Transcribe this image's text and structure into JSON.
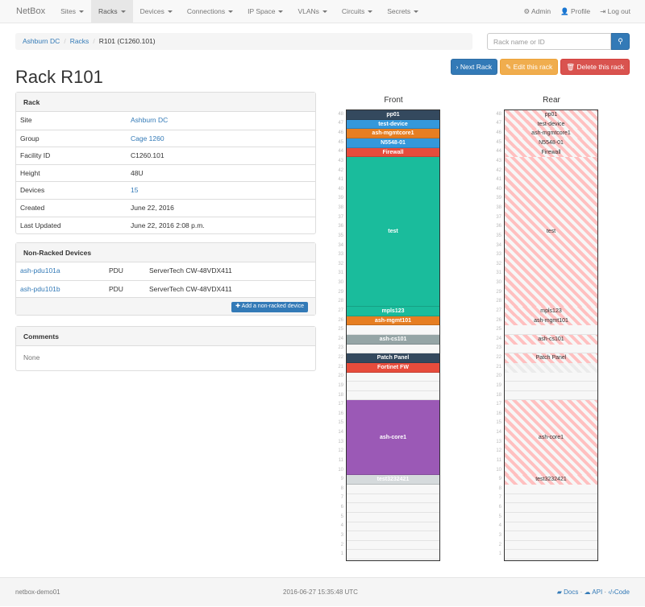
{
  "navbar": {
    "brand": "NetBox",
    "items": [
      "Sites",
      "Racks",
      "Devices",
      "Connections",
      "IP Space",
      "VLANs",
      "Circuits",
      "Secrets"
    ],
    "active": "Racks",
    "right": [
      {
        "icon": "gear-icon",
        "label": "Admin"
      },
      {
        "icon": "user-icon",
        "label": "Profile"
      },
      {
        "icon": "logout-icon",
        "label": "Log out"
      }
    ]
  },
  "breadcrumb": [
    "Ashburn DC",
    "Racks",
    "R101 (C1260.101)"
  ],
  "search": {
    "placeholder": "Rack name or ID",
    "icon": "search-icon"
  },
  "buttons": {
    "next": "Next Rack",
    "edit": "Edit this rack",
    "delete": "Delete this rack"
  },
  "title": "Rack R101",
  "rack_panel": {
    "heading": "Rack",
    "rows": [
      {
        "k": "Site",
        "v": "Ashburn DC",
        "link": true
      },
      {
        "k": "Group",
        "v": "Cage 1260",
        "link": true
      },
      {
        "k": "Facility ID",
        "v": "C1260.101"
      },
      {
        "k": "Height",
        "v": "48U"
      },
      {
        "k": "Devices",
        "v": "15",
        "link": true
      },
      {
        "k": "Created",
        "v": "June 22, 2016"
      },
      {
        "k": "Last Updated",
        "v": "June 22, 2016 2:08 p.m."
      }
    ]
  },
  "nonracked": {
    "heading": "Non-Racked Devices",
    "rows": [
      {
        "name": "ash-pdu101a",
        "role": "PDU",
        "type": "ServerTech CW-48VDX411"
      },
      {
        "name": "ash-pdu101b",
        "role": "PDU",
        "type": "ServerTech CW-48VDX411"
      }
    ],
    "add": "Add a non-racked device"
  },
  "comments": {
    "heading": "Comments",
    "body": "None"
  },
  "rack": {
    "front_title": "Front",
    "rear_title": "Rear",
    "units": 48,
    "devices": [
      {
        "name": "pp01",
        "top": 48,
        "height": 1,
        "color": "#34495e",
        "full": true
      },
      {
        "name": "test-device",
        "top": 47,
        "height": 1,
        "color": "#3498db",
        "full": true
      },
      {
        "name": "ash-mgmtcore1",
        "top": 46,
        "height": 1,
        "color": "#e67e22",
        "full": true
      },
      {
        "name": "N5548-01",
        "top": 45,
        "height": 1,
        "color": "#3498db",
        "full": true
      },
      {
        "name": "Firewall",
        "top": 44,
        "height": 1,
        "color": "#e74c3c",
        "full": true
      },
      {
        "name": "test",
        "top": 43,
        "height": 16,
        "color": "#1abc9c",
        "full": true
      },
      {
        "name": "mpls123",
        "top": 27,
        "height": 1,
        "color": "#1abc9c",
        "full": true
      },
      {
        "name": "ash-mgmt101",
        "top": 26,
        "height": 1,
        "color": "#e67e22",
        "full": true
      },
      {
        "name": "ash-cs101",
        "top": 24,
        "height": 1,
        "color": "#95a5a6",
        "full": true
      },
      {
        "name": "Patch Panel",
        "top": 22,
        "height": 1,
        "color": "#34495e",
        "full": true
      },
      {
        "name": "Fortinet FW",
        "top": 21,
        "height": 1,
        "color": "#e74c3c",
        "full": false
      },
      {
        "name": "ash-core1",
        "top": 17,
        "height": 8,
        "color": "#9b59b6",
        "full": true
      },
      {
        "name": "test3232421",
        "top": 9,
        "height": 1,
        "color": "#d5dadc",
        "full": true
      }
    ]
  },
  "footer": {
    "host": "netbox-demo01",
    "time": "2016-06-27 15:35:48 UTC",
    "docs": "Docs",
    "api": "API",
    "code": "Code",
    "sep": "·"
  }
}
